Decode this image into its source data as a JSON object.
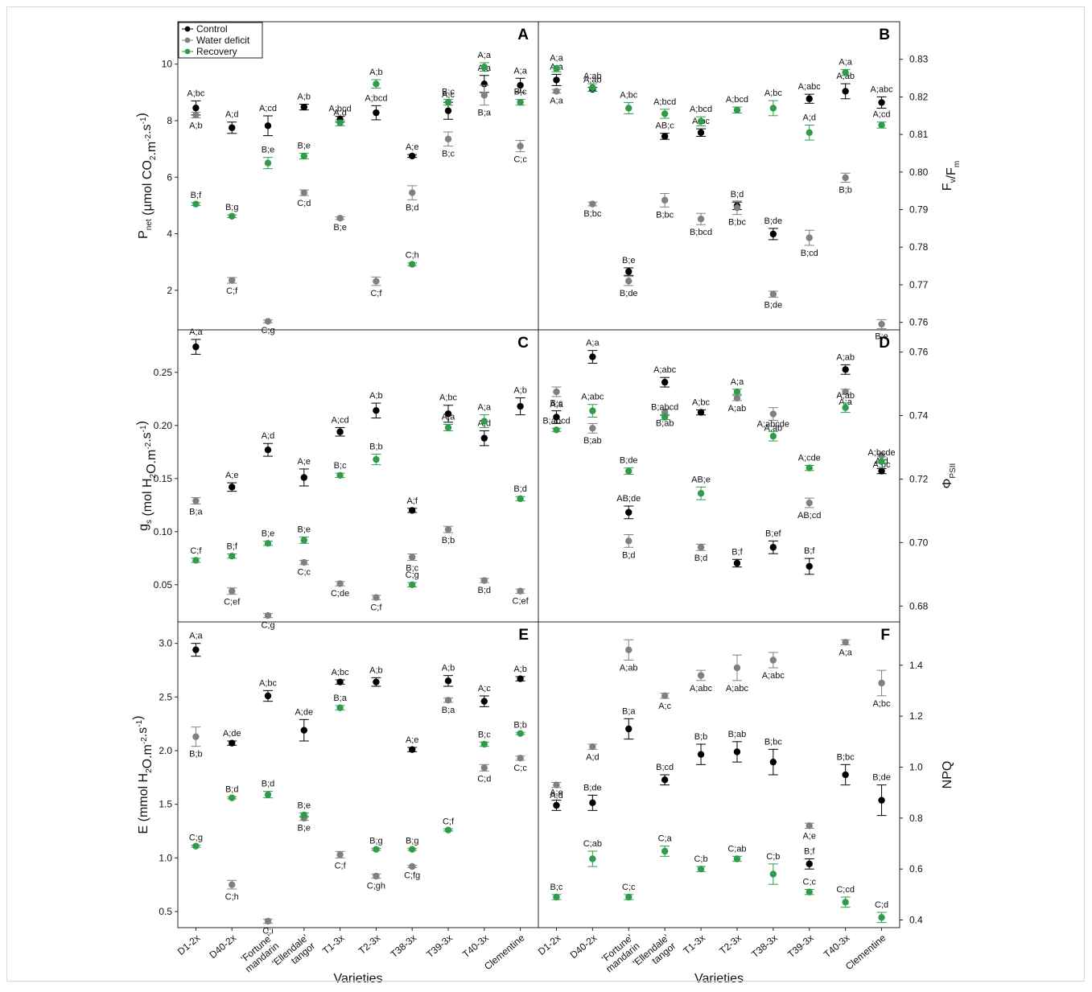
{
  "chart_data": {
    "type": "scatter",
    "categories": [
      "D1-2x",
      "D40-2x",
      "'Fortune'\nmandarin",
      "'Ellendale'\ntangor",
      "T1-3x",
      "T2-3x",
      "T38-3x",
      "T39-3x",
      "T40-3x",
      "Clementine"
    ],
    "xlabel": "Varieties",
    "legend": {
      "placement": "top-left",
      "entries": [
        "Control",
        "Water deficit",
        "Recovery"
      ]
    },
    "series_colors": {
      "Control": "#000000",
      "Water deficit": "#808080",
      "Recovery": "#2e9c4a"
    },
    "panels": [
      {
        "id": "A",
        "ylabel": "P net (µmol CO2.m-2.s-1)",
        "y_axis_side": "left",
        "ylim": [
          0.6,
          11.5
        ],
        "yticks": [
          2,
          4,
          6,
          8,
          10
        ],
        "ytick_labels": [
          "2",
          "4",
          "6",
          "8",
          "10"
        ],
        "series": [
          {
            "name": "Control",
            "values": [
              8.45,
              7.75,
              7.82,
              8.48,
              8.05,
              8.28,
              6.75,
              8.35,
              9.3,
              9.25
            ],
            "errors": [
              0.25,
              0.2,
              0.35,
              0.1,
              0.1,
              0.25,
              0.05,
              0.3,
              0.3,
              0.25
            ],
            "labels": [
              "A;bc",
              "A;d",
              "A;cd",
              "A;b",
              "A;bcd",
              "A;bcd",
              "A;e",
              "A;c",
              "A;a",
              "A;a"
            ]
          },
          {
            "name": "Water deficit",
            "values": [
              8.2,
              2.35,
              0.9,
              5.45,
              4.55,
              2.32,
              5.45,
              7.35,
              8.9,
              7.1
            ],
            "errors": [
              0.1,
              0.1,
              0.05,
              0.1,
              0.05,
              0.15,
              0.25,
              0.25,
              0.35,
              0.2
            ],
            "labels": [
              "A;b",
              "C;f",
              "C;g",
              "C;d",
              "B;e",
              "C;f",
              "B;d",
              "B;c",
              "B;a",
              "C;c"
            ]
          },
          {
            "name": "Recovery",
            "values": [
              5.05,
              4.62,
              6.5,
              6.75,
              7.92,
              9.3,
              2.92,
              8.65,
              9.9,
              8.65
            ],
            "errors": [
              0.05,
              0.05,
              0.2,
              0.1,
              0.1,
              0.15,
              0.05,
              0.1,
              0.15,
              0.1
            ],
            "labels": [
              "B;f",
              "B;g",
              "B;e",
              "B;e",
              "A;d",
              "A;b",
              "C;h",
              "B;c",
              "A;a",
              "B;c"
            ]
          }
        ]
      },
      {
        "id": "B",
        "ylabel": "Fv/Fm",
        "y_axis_side": "right",
        "ylim": [
          0.758,
          0.84
        ],
        "yticks": [
          0.76,
          0.77,
          0.78,
          0.79,
          0.8,
          0.81,
          0.82,
          0.83
        ],
        "ytick_labels": [
          "0.76",
          "0.77",
          "0.78",
          "0.79",
          "0.80",
          "0.81",
          "0.82",
          "0.83"
        ],
        "series": [
          {
            "name": "Control",
            "values": [
              0.8245,
              0.822,
              0.7735,
              0.8095,
              0.8105,
              0.791,
              0.7835,
              0.8195,
              0.8215,
              0.8185
            ],
            "errors": [
              0.0015,
              0.0005,
              0.001,
              0.0008,
              0.001,
              0.001,
              0.0015,
              0.0012,
              0.002,
              0.0015
            ],
            "labels": [
              "A;a",
              "A;ab",
              "B;e",
              "AB;c",
              "A;bc",
              "B;d",
              "B;de",
              "A;abc",
              "A;ab",
              "A;abc"
            ]
          },
          {
            "name": "Water deficit",
            "values": [
              0.8215,
              0.7915,
              0.771,
              0.7925,
              0.7875,
              0.7905,
              0.7675,
              0.7825,
              0.7985,
              0.7595
            ],
            "errors": [
              0.0005,
              0.0005,
              0.0012,
              0.0018,
              0.0015,
              0.0018,
              0.0008,
              0.002,
              0.0012,
              0.0012
            ],
            "labels": [
              "A;a",
              "B;bc",
              "B;de",
              "B;bc",
              "B;bcd",
              "B;bc",
              "B;de",
              "B;cd",
              "B;b",
              "B;e"
            ]
          },
          {
            "name": "Recovery",
            "values": [
              0.8275,
              0.8225,
              0.817,
              0.8155,
              0.8135,
              0.8165,
              0.817,
              0.8105,
              0.8265,
              0.8125
            ],
            "errors": [
              0.0008,
              0.001,
              0.0015,
              0.0012,
              0.0012,
              0.0008,
              0.002,
              0.002,
              0.0008,
              0.0008
            ],
            "labels": [
              "A;a",
              "A;ab",
              "A;bc",
              "A;bcd",
              "A;bcd",
              "A;bcd",
              "A;bc",
              "A;d",
              "A;a",
              "A;cd"
            ]
          }
        ]
      },
      {
        "id": "C",
        "ylabel": "gs (mol H2O.m-2.s-1)",
        "y_axis_side": "left",
        "ylim": [
          0.015,
          0.29
        ],
        "yticks": [
          0.05,
          0.1,
          0.15,
          0.2,
          0.25
        ],
        "ytick_labels": [
          "0.05",
          "0.10",
          "0.15",
          "0.20",
          "0.25"
        ],
        "series": [
          {
            "name": "Control",
            "values": [
              0.274,
              0.142,
              0.177,
              0.151,
              0.194,
              0.214,
              0.12,
              0.211,
              0.188,
              0.218
            ],
            "errors": [
              0.007,
              0.004,
              0.006,
              0.008,
              0.004,
              0.007,
              0.002,
              0.008,
              0.007,
              0.008
            ],
            "labels": [
              "A;a",
              "A;e",
              "A;d",
              "A;e",
              "A;cd",
              "A;b",
              "A;f",
              "A;bc",
              "A;d",
              "A;b"
            ]
          },
          {
            "name": "Water deficit",
            "values": [
              0.129,
              0.044,
              0.021,
              0.071,
              0.051,
              0.038,
              0.076,
              0.102,
              0.054,
              0.044
            ],
            "errors": [
              0.003,
              0.003,
              0.002,
              0.002,
              0.002,
              0.002,
              0.003,
              0.003,
              0.002,
              0.002
            ],
            "labels": [
              "B;a",
              "C;ef",
              "C;g",
              "C;c",
              "C;de",
              "C;f",
              "B;c",
              "B;b",
              "B;d",
              "C;ef"
            ]
          },
          {
            "name": "Recovery",
            "values": [
              0.073,
              0.077,
              0.089,
              0.092,
              0.153,
              0.168,
              0.05,
              0.198,
              0.204,
              0.131
            ],
            "errors": [
              0.002,
              0.002,
              0.002,
              0.003,
              0.002,
              0.005,
              0.002,
              0.003,
              0.006,
              0.002
            ],
            "labels": [
              "C;f",
              "B;f",
              "B;e",
              "B;e",
              "B;c",
              "B;b",
              "C;g",
              "A;a",
              "A;a",
              "B;d"
            ]
          }
        ]
      },
      {
        "id": "D",
        "ylabel": "ΦPSII",
        "y_axis_side": "right",
        "ylim": [
          0.675,
          0.767
        ],
        "yticks": [
          0.68,
          0.7,
          0.72,
          0.74,
          0.76
        ],
        "ytick_labels": [
          "0.68",
          "0.70",
          "0.72",
          "0.74",
          "0.76"
        ],
        "series": [
          {
            "name": "Control",
            "values": [
              0.7395,
              0.7585,
              0.7095,
              0.7505,
              0.741,
              0.6935,
              0.6985,
              0.6925,
              0.7545,
              0.7225
            ],
            "errors": [
              0.002,
              0.002,
              0.002,
              0.0015,
              0.0008,
              0.0012,
              0.002,
              0.0025,
              0.0015,
              0.0008
            ],
            "labels": [
              "B;c",
              "A;a",
              "AB;de",
              "A;abc",
              "A;bc",
              "B;f",
              "B;ef",
              "B;f",
              "A;ab",
              "A;d"
            ]
          },
          {
            "name": "Water deficit",
            "values": [
              0.7475,
              0.736,
              0.7005,
              0.741,
              0.6985,
              0.7455,
              0.7405,
              0.7125,
              0.7475,
              0.7275
            ],
            "errors": [
              0.0015,
              0.0015,
              0.002,
              0.001,
              0.001,
              0.0008,
              0.002,
              0.0015,
              0.0008,
              0.0005
            ],
            "labels": [
              "A;a",
              "B;ab",
              "B;d",
              "B;ab",
              "B;d",
              "A;ab",
              "A;ab",
              "AB;cd",
              "A;a",
              "A;bc"
            ]
          },
          {
            "name": "Recovery",
            "values": [
              0.7355,
              0.7415,
              0.7225,
              0.7395,
              0.7155,
              0.7475,
              0.7335,
              0.7235,
              0.7425,
              0.7255
            ],
            "errors": [
              0.0005,
              0.002,
              0.001,
              0.0008,
              0.002,
              0.0008,
              0.0015,
              0.0008,
              0.0015,
              0.0005
            ],
            "labels": [
              "B;abcd",
              "A;abc",
              "B;de",
              "B;abcd",
              "AB;e",
              "A;a",
              "A;abcde",
              "A;cde",
              "A;ab",
              "A;bcde"
            ]
          }
        ]
      },
      {
        "id": "E",
        "ylabel": "E (mmol H2O.m-2.s-1)",
        "y_axis_side": "left",
        "ylim": [
          0.35,
          3.2
        ],
        "yticks": [
          0.5,
          1.0,
          1.5,
          2.0,
          2.5,
          3.0
        ],
        "ytick_labels": [
          "0.5",
          "1.0",
          "1.5",
          "2.0",
          "2.5",
          "3.0"
        ],
        "series": [
          {
            "name": "Control",
            "values": [
              2.94,
              2.07,
              2.51,
              2.19,
              2.64,
              2.64,
              2.01,
              2.65,
              2.46,
              2.67
            ],
            "errors": [
              0.06,
              0.02,
              0.05,
              0.1,
              0.02,
              0.04,
              0.02,
              0.05,
              0.05,
              0.02
            ],
            "labels": [
              "A;a",
              "A;de",
              "A;bc",
              "A;de",
              "A;bc",
              "A;b",
              "A;e",
              "A;b",
              "A;c",
              "A;b"
            ]
          },
          {
            "name": "Water deficit",
            "values": [
              2.13,
              0.75,
              0.41,
              1.37,
              1.03,
              0.83,
              0.92,
              2.47,
              1.84,
              1.93
            ],
            "errors": [
              0.09,
              0.04,
              0.02,
              0.02,
              0.03,
              0.02,
              0.01,
              0.02,
              0.03,
              0.02
            ],
            "labels": [
              "B;b",
              "C;h",
              "C;i",
              "B;e",
              "C;f",
              "C;gh",
              "C;fg",
              "B;a",
              "C;d",
              "C;c"
            ]
          },
          {
            "name": "Recovery",
            "values": [
              1.11,
              1.56,
              1.59,
              1.4,
              2.4,
              1.08,
              1.08,
              1.26,
              2.06,
              2.16
            ],
            "errors": [
              0.01,
              0.01,
              0.03,
              0.02,
              0.02,
              0.01,
              0.01,
              0.01,
              0.02,
              0.01
            ],
            "labels": [
              "C;g",
              "B;d",
              "B;d",
              "B;e",
              "B;a",
              "B;g",
              "B;g",
              "C;f",
              "B;c",
              "B;b"
            ]
          }
        ]
      },
      {
        "id": "F",
        "ylabel": "NPQ",
        "y_axis_side": "right",
        "ylim": [
          0.37,
          1.57
        ],
        "yticks": [
          0.4,
          0.6,
          0.8,
          1.0,
          1.2,
          1.4
        ],
        "ytick_labels": [
          "0.4",
          "0.6",
          "0.8",
          "1.0",
          "1.2",
          "1.4"
        ],
        "series": [
          {
            "name": "Control",
            "values": [
              0.85,
              0.86,
              1.15,
              0.95,
              1.05,
              1.06,
              1.02,
              0.62,
              0.97,
              0.87
            ],
            "errors": [
              0.02,
              0.03,
              0.04,
              0.02,
              0.04,
              0.04,
              0.05,
              0.02,
              0.04,
              0.06
            ],
            "labels": [
              "A;e",
              "B;de",
              "B;a",
              "B;cd",
              "B;b",
              "B;ab",
              "B;bc",
              "B;f",
              "B;bc",
              "B;de"
            ]
          },
          {
            "name": "Water deficit",
            "values": [
              0.93,
              1.08,
              1.46,
              1.28,
              1.36,
              1.39,
              1.42,
              0.77,
              1.49,
              1.33
            ],
            "errors": [
              0.01,
              0.01,
              0.04,
              0.01,
              0.02,
              0.05,
              0.03,
              0.01,
              0.01,
              0.05
            ],
            "labels": [
              "A;d",
              "A;d",
              "A;ab",
              "A;c",
              "A;abc",
              "A;abc",
              "A;abc",
              "A;e",
              "A;a",
              "A;bc"
            ]
          },
          {
            "name": "Recovery",
            "values": [
              0.49,
              0.64,
              0.49,
              0.67,
              0.6,
              0.64,
              0.58,
              0.51,
              0.47,
              0.41
            ],
            "errors": [
              0.01,
              0.03,
              0.01,
              0.02,
              0.01,
              0.01,
              0.04,
              0.01,
              0.02,
              0.02
            ],
            "labels": [
              "B;c",
              "C;ab",
              "C;c",
              "C;a",
              "C;b",
              "C;ab",
              "C;b",
              "C;c",
              "C;cd",
              "C;d"
            ]
          }
        ]
      }
    ]
  }
}
